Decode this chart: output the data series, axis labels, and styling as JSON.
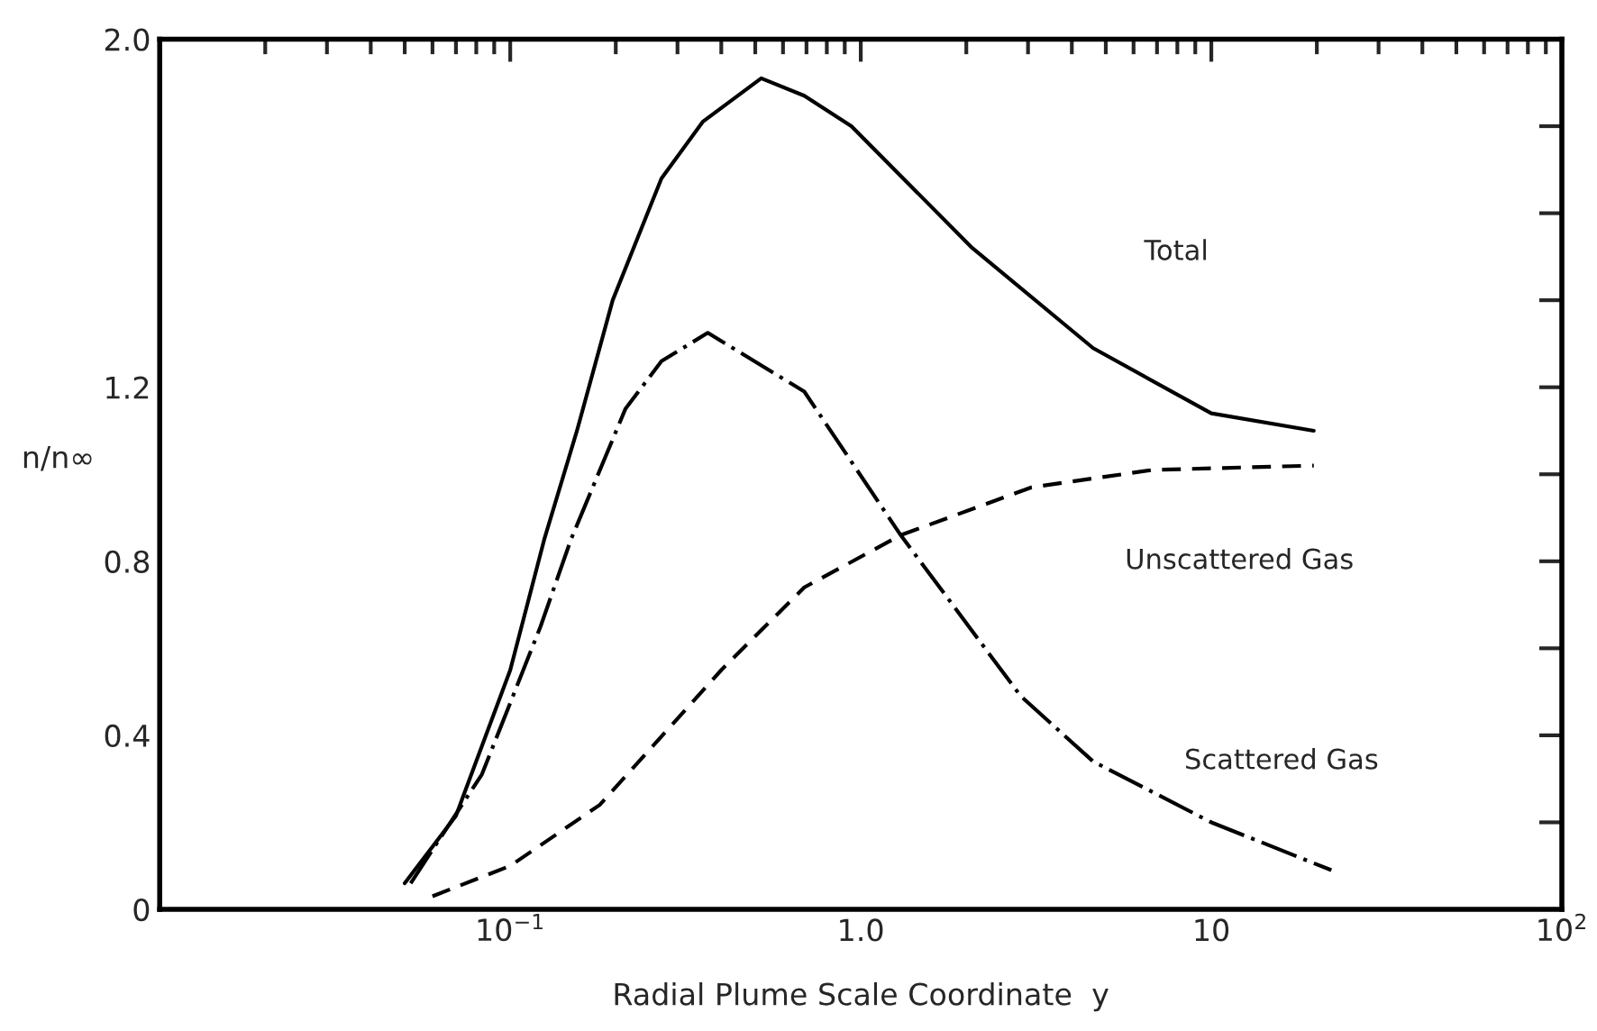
{
  "chart_data": {
    "type": "line",
    "xlabel": "Radial Plume Scale Coordinate  y",
    "ylabel": "n/n∞",
    "log": "x",
    "xlim": [
      0.01,
      100
    ],
    "xticks": [
      {
        "value": 0.1,
        "label": "10$^{−1}$"
      },
      {
        "value": 1,
        "label": "1.0"
      },
      {
        "value": 10,
        "label": "10"
      },
      {
        "value": 100,
        "label": "10$^{2}$"
      }
    ],
    "ylim": [
      0,
      2.0
    ],
    "yticks": [
      {
        "value": 0,
        "label": "0"
      },
      {
        "value": 0.2,
        "label": null
      },
      {
        "value": 0.4,
        "label": "0.4"
      },
      {
        "value": 0.6,
        "label": null
      },
      {
        "value": 0.8,
        "label": "0.8"
      },
      {
        "value": 1.0,
        "label": null
      },
      {
        "value": 1.2,
        "label": "1.2"
      },
      {
        "value": 1.4,
        "label": null
      },
      {
        "value": 1.6,
        "label": null
      },
      {
        "value": 1.8,
        "label": null
      },
      {
        "value": 2.0,
        "label": "2.0"
      }
    ],
    "grid": false,
    "legend": false,
    "marker": "none",
    "series": [
      {
        "color": "#000000",
        "line_style": "solid",
        "x": [
          0.05,
          0.07,
          0.1,
          0.125,
          0.155,
          0.196,
          0.27,
          0.354,
          0.52,
          0.69,
          0.94,
          2.08,
          4.6,
          10,
          19.6
        ],
        "values": [
          0.06,
          0.215,
          0.55,
          0.85,
          1.1,
          1.4,
          1.68,
          1.81,
          1.91,
          1.87,
          1.8,
          1.52,
          1.29,
          1.14,
          1.1
        ]
      },
      {
        "color": "#000000",
        "line_style": "dashdot",
        "x": [
          0.052,
          0.083,
          0.122,
          0.149,
          0.213,
          0.27,
          0.366,
          0.69,
          1.3,
          2.86,
          4.6,
          10,
          22
        ],
        "values": [
          0.06,
          0.31,
          0.65,
          0.85,
          1.15,
          1.26,
          1.325,
          1.19,
          0.86,
          0.49,
          0.34,
          0.2,
          0.09
        ]
      },
      {
        "color": "#000000",
        "line_style": "dashed",
        "x": [
          0.06,
          0.1,
          0.18,
          0.4,
          0.69,
          1.3,
          3.07,
          6.8,
          19.6
        ],
        "values": [
          0.03,
          0.1,
          0.24,
          0.55,
          0.74,
          0.86,
          0.97,
          1.01,
          1.02
        ]
      }
    ],
    "annotations": [
      "Total",
      "Unscattered Gas",
      "Scattered Gas"
    ]
  }
}
